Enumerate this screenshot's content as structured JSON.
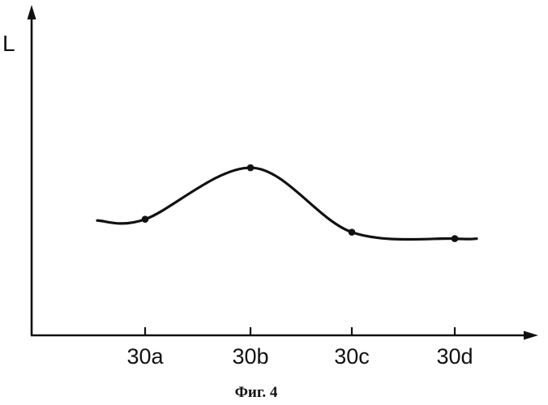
{
  "chart_data": {
    "type": "line",
    "title": "",
    "caption": "Фиг. 4",
    "ylabel": "L",
    "xlabel": "",
    "categories": [
      "30a",
      "30b",
      "30c",
      "30d"
    ],
    "series": [
      {
        "values": [
          0.36,
          0.52,
          0.32,
          0.3
        ]
      }
    ],
    "ylim": [
      0,
      1
    ],
    "grid": false,
    "legend": "none",
    "y_ticks_shown": false,
    "line_color": "#111111"
  }
}
